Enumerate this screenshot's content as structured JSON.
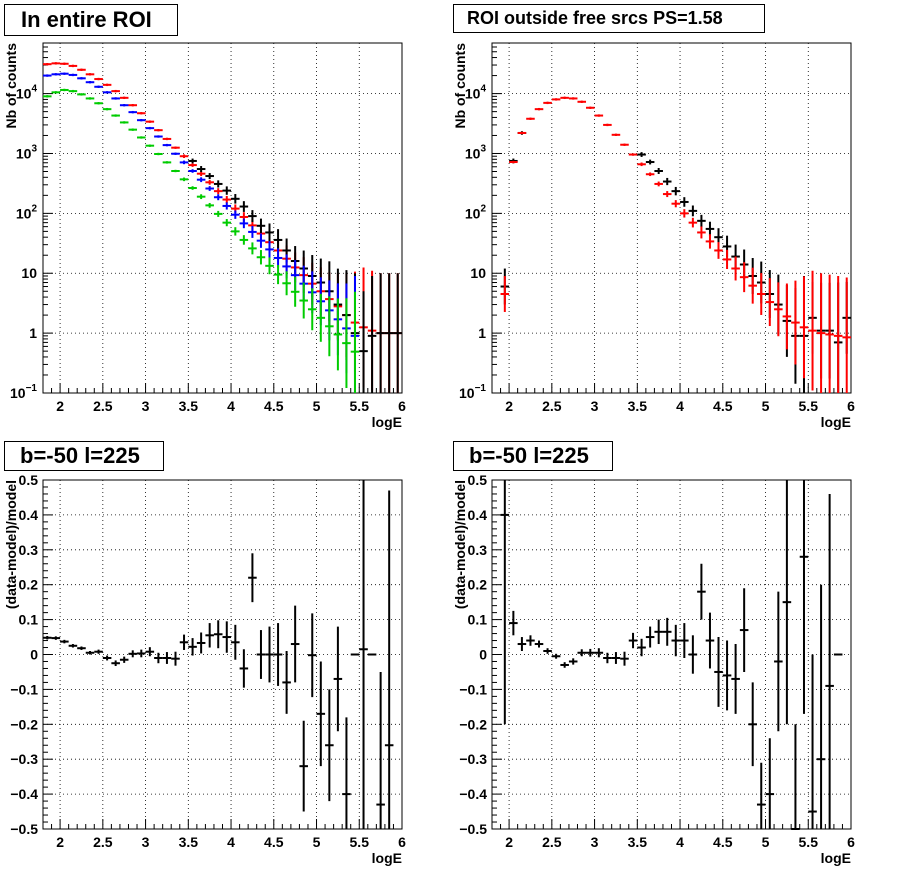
{
  "chart_data": [
    {
      "type": "scatter",
      "title": "In entire ROI",
      "xlabel": "logE",
      "ylabel": "Nb of counts",
      "xlim": [
        1.8,
        6.0
      ],
      "ylim": [
        0.1,
        70000
      ],
      "yscale": "log",
      "grid": true,
      "xticks": [
        "2",
        "2.5",
        "3",
        "3.5",
        "4",
        "4.5",
        "5",
        "5.5",
        "6"
      ],
      "yticks": [
        {
          "value": 0.1,
          "label": "10",
          "sup": "−1"
        },
        {
          "value": 1,
          "label": "1",
          "sup": ""
        },
        {
          "value": 10,
          "label": "10",
          "sup": ""
        },
        {
          "value": 100,
          "label": "10",
          "sup": "2"
        },
        {
          "value": 1000,
          "label": "10",
          "sup": "3"
        },
        {
          "value": 10000,
          "label": "10",
          "sup": "4"
        }
      ],
      "series": [
        {
          "color": "#ff0000",
          "x": [
            1.85,
            1.95,
            2.05,
            2.15,
            2.25,
            2.35,
            2.45,
            2.55,
            2.65,
            2.75,
            2.85,
            2.95,
            3.05,
            3.15,
            3.25,
            3.35,
            3.45,
            3.55,
            3.65,
            3.75,
            3.85,
            3.95,
            4.05,
            4.15,
            4.25,
            4.35,
            4.45,
            4.55,
            4.65,
            4.75,
            4.85,
            4.95,
            5.05,
            5.15,
            5.25,
            5.35,
            5.45,
            5.55,
            5.65,
            5.75,
            5.85,
            5.95
          ],
          "y": [
            31000,
            32000,
            31500,
            29000,
            25000,
            21000,
            17500,
            14000,
            11000,
            8500,
            6400,
            4700,
            3400,
            2450,
            1750,
            1250,
            900,
            640,
            460,
            330,
            235,
            170,
            120,
            87,
            63,
            46,
            33,
            24,
            17.5,
            12.5,
            9.3,
            6.7,
            5,
            3.7,
            2.8,
            2,
            1.5,
            1.25,
            1.1,
            1,
            1,
            1
          ],
          "err": [
            0.02,
            0.02,
            0.02,
            0.02,
            0.02,
            0.02,
            0.02,
            0.02,
            0.02,
            0.02,
            0.02,
            0.02,
            0.02,
            0.02,
            0.02,
            0.02,
            0.03,
            0.03,
            0.04,
            0.04,
            0.05,
            0.06,
            0.07,
            0.08,
            0.1,
            0.12,
            0.14,
            0.16,
            0.22,
            0.25,
            0.3,
            0.35,
            0.4,
            0.45,
            0.55,
            0.7,
            0.85,
            1,
            1,
            1,
            1,
            1
          ]
        },
        {
          "color": "#000000",
          "x": [
            3.55,
            3.65,
            3.75,
            3.85,
            3.95,
            4.05,
            4.15,
            4.25,
            4.35,
            4.45,
            4.55,
            4.65,
            4.75,
            4.85,
            4.95,
            5.05,
            5.15,
            5.25,
            5.35,
            5.45,
            5.55,
            5.65,
            5.75,
            5.85,
            5.95
          ],
          "y": [
            750,
            550,
            420,
            310,
            240,
            175,
            130,
            90,
            62,
            48,
            36,
            24,
            16,
            12,
            9,
            7,
            5,
            3,
            2,
            1,
            0.5,
            0.9,
            1,
            1,
            1
          ],
          "err": [
            0.04,
            0.05,
            0.05,
            0.06,
            0.07,
            0.08,
            0.09,
            0.1,
            0.12,
            0.15,
            0.18,
            0.2,
            0.25,
            0.3,
            0.35,
            0.4,
            0.5,
            0.6,
            0.75,
            1,
            1,
            1,
            1,
            1,
            1
          ]
        },
        {
          "color": "#0000ff",
          "x": [
            1.85,
            1.95,
            2.05,
            2.15,
            2.25,
            2.35,
            2.45,
            2.55,
            2.65,
            2.75,
            2.85,
            2.95,
            3.05,
            3.15,
            3.25,
            3.35,
            3.45,
            3.55,
            3.65,
            3.75,
            3.85,
            3.95,
            4.05,
            4.15,
            4.25,
            4.35,
            4.45,
            4.55,
            4.65,
            4.75,
            4.85,
            4.95,
            5.05,
            5.15,
            5.25,
            5.35,
            5.45
          ],
          "y": [
            20000,
            21000,
            21500,
            20500,
            18000,
            15500,
            13000,
            10500,
            8300,
            6400,
            4900,
            3600,
            2650,
            1920,
            1380,
            990,
            710,
            510,
            365,
            260,
            186,
            133,
            95,
            68,
            49,
            35,
            25,
            18,
            13,
            9.3,
            6.7,
            4.8,
            3.4,
            2.4,
            1.7,
            1.2,
            0.9
          ],
          "err": [
            0.02,
            0.02,
            0.02,
            0.02,
            0.02,
            0.02,
            0.02,
            0.02,
            0.02,
            0.02,
            0.02,
            0.02,
            0.02,
            0.02,
            0.02,
            0.02,
            0.03,
            0.03,
            0.04,
            0.04,
            0.05,
            0.06,
            0.07,
            0.08,
            0.1,
            0.12,
            0.14,
            0.16,
            0.2,
            0.25,
            0.3,
            0.35,
            0.4,
            0.5,
            0.6,
            0.75,
            1
          ]
        },
        {
          "color": "#00cc00",
          "x": [
            1.85,
            1.95,
            2.05,
            2.15,
            2.25,
            2.35,
            2.45,
            2.55,
            2.65,
            2.75,
            2.85,
            2.95,
            3.05,
            3.15,
            3.25,
            3.35,
            3.45,
            3.55,
            3.65,
            3.75,
            3.85,
            3.95,
            4.05,
            4.15,
            4.25,
            4.35,
            4.45,
            4.55,
            4.65,
            4.75,
            4.85,
            4.95,
            5.05,
            5.15,
            5.25,
            5.35,
            5.45
          ],
          "y": [
            9000,
            10500,
            11500,
            11000,
            9700,
            8300,
            6900,
            5500,
            4300,
            3300,
            2500,
            1850,
            1350,
            980,
            710,
            510,
            370,
            265,
            190,
            136,
            98,
            70,
            50,
            36,
            26,
            18.5,
            13.3,
            9.5,
            6.8,
            4.9,
            3.5,
            2.5,
            1.8,
            1.3,
            0.95,
            0.68,
            0.49
          ],
          "err": [
            0.02,
            0.02,
            0.02,
            0.02,
            0.02,
            0.02,
            0.02,
            0.02,
            0.02,
            0.02,
            0.02,
            0.02,
            0.02,
            0.02,
            0.02,
            0.02,
            0.03,
            0.03,
            0.04,
            0.04,
            0.05,
            0.06,
            0.07,
            0.08,
            0.1,
            0.12,
            0.14,
            0.16,
            0.2,
            0.25,
            0.3,
            0.35,
            0.4,
            0.5,
            0.6,
            0.75,
            1
          ]
        }
      ]
    },
    {
      "type": "scatter",
      "title": "ROI outside free srcs PS=1.58",
      "xlabel": "logE",
      "ylabel": "Nb of counts",
      "xlim": [
        1.8,
        6.0
      ],
      "ylim": [
        0.1,
        70000
      ],
      "yscale": "log",
      "grid": true,
      "xticks": [
        "2",
        "2.5",
        "3",
        "3.5",
        "4",
        "4.5",
        "5",
        "5.5",
        "6"
      ],
      "yticks": [
        {
          "value": 0.1,
          "label": "10",
          "sup": "−1"
        },
        {
          "value": 1,
          "label": "1",
          "sup": ""
        },
        {
          "value": 10,
          "label": "10",
          "sup": ""
        },
        {
          "value": 100,
          "label": "10",
          "sup": "2"
        },
        {
          "value": 1000,
          "label": "10",
          "sup": "3"
        },
        {
          "value": 10000,
          "label": "10",
          "sup": "4"
        }
      ],
      "series": [
        {
          "color": "#000000",
          "x": [
            1.95,
            2.05,
            2.15,
            3.55,
            3.65,
            3.75,
            3.85,
            3.95,
            4.05,
            4.15,
            4.25,
            4.35,
            4.45,
            4.55,
            4.65,
            4.75,
            4.85,
            4.95,
            5.05,
            5.15,
            5.25,
            5.35,
            5.45,
            5.55,
            5.65,
            5.75,
            5.85,
            5.95
          ],
          "y": [
            6,
            750,
            2200,
            960,
            720,
            510,
            340,
            235,
            155,
            110,
            75,
            55,
            40,
            28,
            19,
            14,
            9,
            7,
            4.5,
            3,
            1.6,
            0.9,
            0.9,
            1.8,
            1.1,
            1.1,
            0.7,
            1.8
          ],
          "err": [
            0.3,
            0.04,
            0.03,
            0.04,
            0.04,
            0.05,
            0.06,
            0.07,
            0.08,
            0.09,
            0.1,
            0.12,
            0.15,
            0.18,
            0.2,
            0.25,
            0.3,
            0.35,
            0.4,
            0.5,
            0.6,
            0.8,
            1,
            0.6,
            0.8,
            0.8,
            1,
            0.6
          ]
        },
        {
          "color": "#ff0000",
          "x": [
            1.95,
            2.05,
            2.15,
            2.25,
            2.35,
            2.45,
            2.55,
            2.65,
            2.75,
            2.85,
            2.95,
            3.05,
            3.15,
            3.25,
            3.35,
            3.45,
            3.55,
            3.65,
            3.75,
            3.85,
            3.95,
            4.05,
            4.15,
            4.25,
            4.35,
            4.45,
            4.55,
            4.65,
            4.75,
            4.85,
            4.95,
            5.05,
            5.15,
            5.25,
            5.35,
            5.45,
            5.55,
            5.65,
            5.75,
            5.85,
            5.95
          ],
          "y": [
            4.5,
            720,
            2200,
            3800,
            5500,
            7000,
            8000,
            8500,
            8300,
            7300,
            5800,
            4300,
            3000,
            2050,
            1400,
            960,
            660,
            450,
            310,
            210,
            145,
            100,
            70,
            48,
            34,
            24,
            17,
            12,
            8.6,
            6.2,
            4.5,
            3.3,
            2.5,
            1.9,
            1.5,
            1.25,
            1.1,
            1,
            0.95,
            0.9,
            0.85
          ],
          "err": [
            0.3,
            0.02,
            0.02,
            0.02,
            0.02,
            0.02,
            0.02,
            0.02,
            0.02,
            0.02,
            0.02,
            0.02,
            0.02,
            0.02,
            0.02,
            0.02,
            0.03,
            0.03,
            0.04,
            0.05,
            0.06,
            0.07,
            0.08,
            0.1,
            0.12,
            0.14,
            0.16,
            0.2,
            0.25,
            0.3,
            0.35,
            0.4,
            0.45,
            0.55,
            0.7,
            0.85,
            1,
            1,
            1,
            1,
            1
          ]
        }
      ]
    },
    {
      "type": "scatter",
      "title": "b=-50 l=225",
      "xlabel": "logE",
      "ylabel": "(data-model)/model",
      "xlim": [
        1.8,
        6.0
      ],
      "ylim": [
        -0.5,
        0.5
      ],
      "grid": true,
      "xticks": [
        "2",
        "2.5",
        "3",
        "3.5",
        "4",
        "4.5",
        "5",
        "5.5",
        "6"
      ],
      "yticks": [
        "−0.5",
        "−0.4",
        "−0.3",
        "−0.2",
        "−0.1",
        "0",
        "0.1",
        "0.2",
        "0.3",
        "0.4",
        "0.5"
      ],
      "series": [
        {
          "color": "#000000",
          "x": [
            1.85,
            1.95,
            2.05,
            2.15,
            2.25,
            2.35,
            2.45,
            2.55,
            2.65,
            2.75,
            2.85,
            2.95,
            3.05,
            3.15,
            3.25,
            3.35,
            3.45,
            3.55,
            3.65,
            3.75,
            3.85,
            3.95,
            4.05,
            4.15,
            4.25,
            4.35,
            4.45,
            4.55,
            4.65,
            4.75,
            4.85,
            4.95,
            5.05,
            5.15,
            5.25,
            5.35,
            5.45,
            5.55,
            5.65,
            5.75,
            5.85
          ],
          "y": [
            0.048,
            0.047,
            0.037,
            0.025,
            0.018,
            0.005,
            0.008,
            -0.01,
            -0.025,
            -0.015,
            0.002,
            0.003,
            0.008,
            -0.01,
            -0.01,
            -0.012,
            0.035,
            0.022,
            0.033,
            0.055,
            0.058,
            0.05,
            0.035,
            -0.04,
            0.22,
            0.0,
            0.0,
            0.0,
            -0.08,
            0.03,
            -0.32,
            -0.002,
            -0.17,
            -0.26,
            -0.07,
            -0.4,
            0.0,
            0.015,
            0.0,
            -0.43,
            -0.26
          ],
          "err": [
            0.005,
            0.005,
            0.005,
            0.005,
            0.005,
            0.005,
            0.006,
            0.007,
            0.008,
            0.009,
            0.01,
            0.011,
            0.013,
            0.015,
            0.017,
            0.02,
            0.022,
            0.025,
            0.03,
            0.035,
            0.04,
            0.045,
            0.05,
            0.055,
            0.07,
            0.07,
            0.08,
            0.09,
            0.09,
            0.11,
            0.13,
            0.12,
            0.15,
            0.16,
            0.15,
            0.22,
            0.0,
            0.6,
            0.0,
            0.38,
            0.73
          ]
        }
      ]
    },
    {
      "type": "scatter",
      "title": "b=-50 l=225",
      "xlabel": "logE",
      "ylabel": "(data-model)/model",
      "xlim": [
        1.8,
        6.0
      ],
      "ylim": [
        -0.5,
        0.5
      ],
      "grid": true,
      "xticks": [
        "2",
        "2.5",
        "3",
        "3.5",
        "4",
        "4.5",
        "5",
        "5.5",
        "6"
      ],
      "yticks": [
        "−0.5",
        "−0.4",
        "−0.3",
        "−0.2",
        "−0.1",
        "0",
        "0.1",
        "0.2",
        "0.3",
        "0.4",
        "0.5"
      ],
      "series": [
        {
          "color": "#000000",
          "x": [
            1.95,
            2.05,
            2.15,
            2.25,
            2.35,
            2.45,
            2.55,
            2.65,
            2.75,
            2.85,
            2.95,
            3.05,
            3.15,
            3.25,
            3.35,
            3.45,
            3.55,
            3.65,
            3.75,
            3.85,
            3.95,
            4.05,
            4.15,
            4.25,
            4.35,
            4.45,
            4.55,
            4.65,
            4.75,
            4.85,
            4.95,
            5.05,
            5.15,
            5.25,
            5.35,
            5.45,
            5.55,
            5.65,
            5.75,
            5.85
          ],
          "y": [
            0.4,
            0.09,
            0.03,
            0.04,
            0.03,
            0.01,
            -0.005,
            -0.03,
            -0.02,
            0.005,
            0.005,
            0.005,
            -0.01,
            -0.01,
            -0.012,
            0.04,
            0.02,
            0.05,
            0.065,
            0.065,
            0.04,
            0.04,
            0.0,
            0.18,
            0.04,
            -0.05,
            -0.06,
            -0.07,
            0.07,
            -0.2,
            -0.43,
            -0.4,
            -0.02,
            0.15,
            -0.5,
            0.28,
            -0.45,
            -0.3,
            -0.09,
            0.0
          ],
          "err": [
            0.6,
            0.035,
            0.02,
            0.015,
            0.01,
            0.008,
            0.007,
            0.008,
            0.009,
            0.01,
            0.011,
            0.013,
            0.015,
            0.017,
            0.02,
            0.022,
            0.025,
            0.03,
            0.035,
            0.04,
            0.045,
            0.05,
            0.055,
            0.08,
            0.08,
            0.1,
            0.1,
            0.1,
            0.12,
            0.12,
            0.12,
            0.16,
            0.2,
            0.35,
            0.3,
            0.45,
            0.45,
            0.5,
            0.55,
            0.0
          ]
        }
      ]
    }
  ]
}
